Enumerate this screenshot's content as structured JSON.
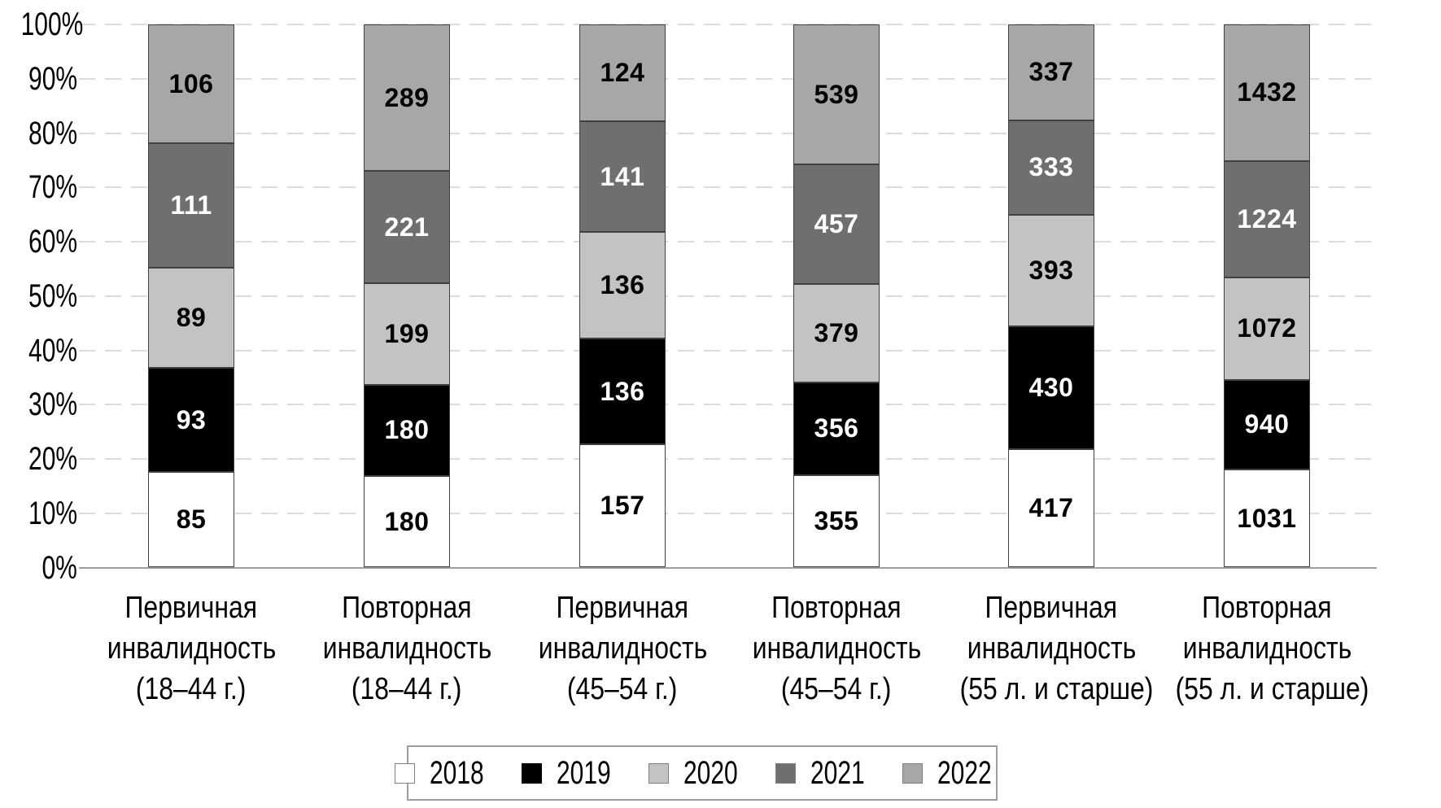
{
  "chart_data": {
    "type": "bar",
    "subtype": "stacked-100-percent",
    "title": "",
    "categories": [
      "Первичная инвалидность (18–44 г.)",
      "Повторная инвалидность (18–44 г.)",
      "Первичная инвалидность (45–54 г.)",
      "Повторная инвалидность (45–54 г.)",
      "Первичная инвалидность (55 л. и старше)",
      "Повторная инвалидность (55 л. и старше)"
    ],
    "category_lines": [
      [
        "Первичная",
        "инвалидность",
        "(18–44 г.)"
      ],
      [
        "Повторная",
        "инвалидность",
        "(18–44 г.)"
      ],
      [
        "Первичная",
        "инвалидность",
        "(45–54 г.)"
      ],
      [
        "Повторная",
        "инвалидность",
        "(45–54 г.)"
      ],
      [
        "Первичная",
        "инвалидность",
        "(55 л. и старше)"
      ],
      [
        "Повторная",
        "инвалидность",
        "(55 л. и старше)"
      ]
    ],
    "series": [
      {
        "name": "2018",
        "color": "#ffffff",
        "label_color": "#000000",
        "values": [
          85,
          180,
          157,
          355,
          417,
          1031
        ]
      },
      {
        "name": "2019",
        "color": "#000000",
        "label_color": "#ffffff",
        "values": [
          93,
          180,
          136,
          356,
          430,
          940
        ]
      },
      {
        "name": "2020",
        "color": "#c3c3c3",
        "label_color": "#000000",
        "values": [
          89,
          199,
          136,
          379,
          393,
          1072
        ]
      },
      {
        "name": "2021",
        "color": "#6f6f6f",
        "label_color": "#ffffff",
        "values": [
          111,
          221,
          141,
          457,
          333,
          1224
        ]
      },
      {
        "name": "2022",
        "color": "#a7a7a7",
        "label_color": "#000000",
        "values": [
          106,
          289,
          124,
          539,
          337,
          1432
        ]
      }
    ],
    "y_axis": {
      "min": 0,
      "max": 100,
      "unit": "%",
      "ticks": [
        "0%",
        "10%",
        "20%",
        "30%",
        "40%",
        "50%",
        "60%",
        "70%",
        "80%",
        "90%",
        "100%"
      ],
      "grid": "dashed"
    },
    "legend": {
      "position": "bottom",
      "entries": [
        "2018",
        "2019",
        "2020",
        "2021",
        "2022"
      ]
    }
  },
  "colors": {
    "background": "#ffffff",
    "grid": "#dcdcdc",
    "axis": "#9f9f9f",
    "segment_border": "#404040",
    "legend_border": "#9e9e9e",
    "text": "#000000"
  }
}
